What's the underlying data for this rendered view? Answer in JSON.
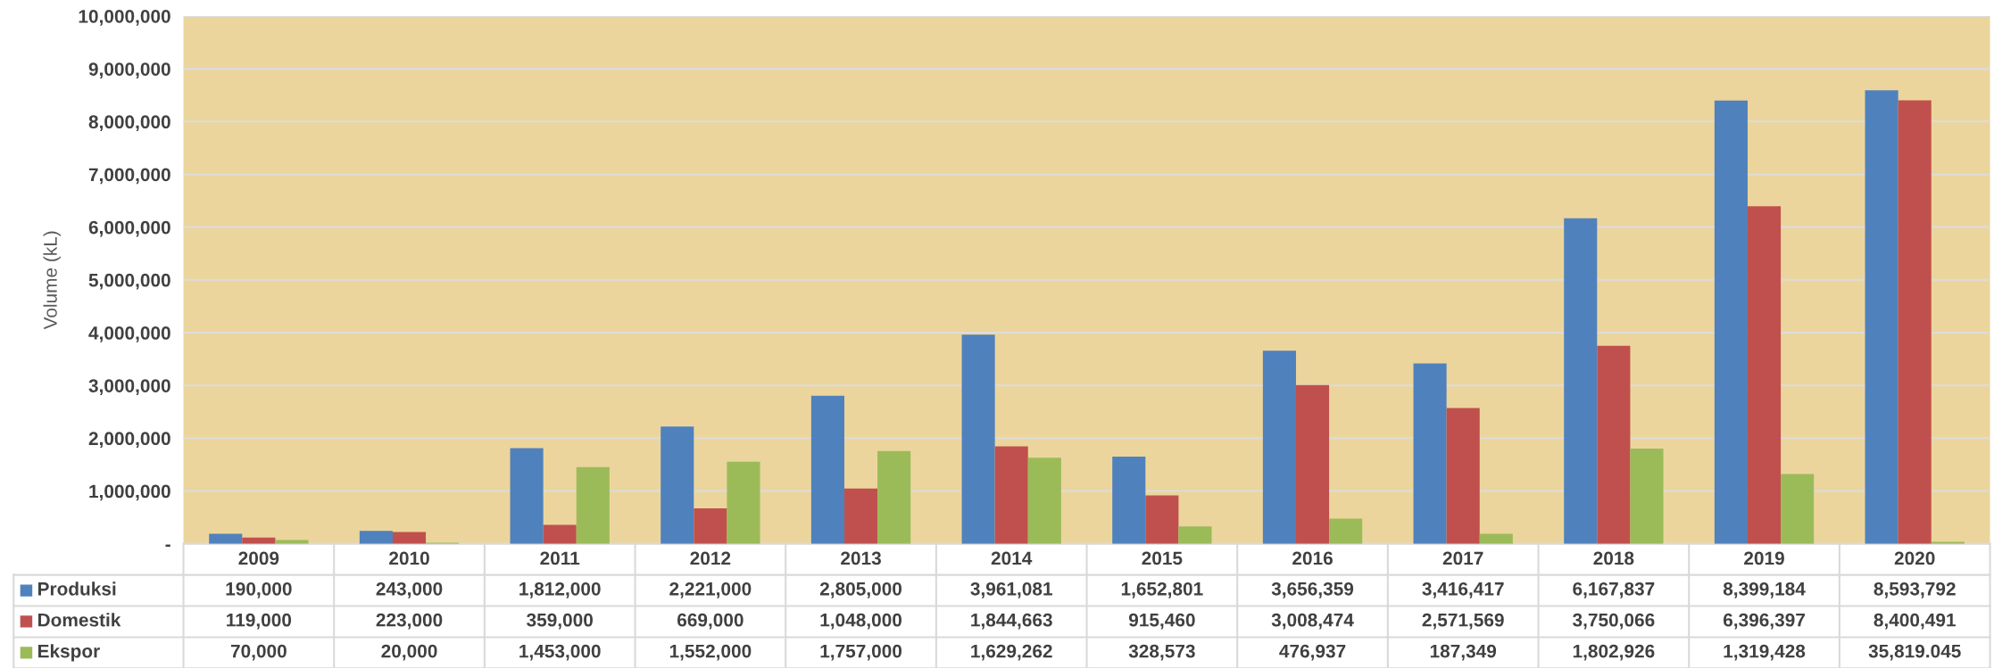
{
  "chart_data": {
    "type": "bar",
    "ylabel": "Volume (kL)",
    "categories": [
      "2009",
      "2010",
      "2011",
      "2012",
      "2013",
      "2014",
      "2015",
      "2016",
      "2017",
      "2018",
      "2019",
      "2020"
    ],
    "series": [
      {
        "name": "Produksi",
        "color": "#4f81bd",
        "values": [
          190000,
          243000,
          1812000,
          2221000,
          2805000,
          3961081,
          1652801,
          3656359,
          3416417,
          6167837,
          8399184,
          8593792
        ],
        "value_labels": [
          "190,000",
          "243,000",
          "1,812,000",
          "2,221,000",
          "2,805,000",
          "3,961,081",
          "1,652,801",
          "3,656,359",
          "3,416,417",
          "6,167,837",
          "8,399,184",
          "8,593,792"
        ]
      },
      {
        "name": "Domestik",
        "color": "#c0504d",
        "values": [
          119000,
          223000,
          359000,
          669000,
          1048000,
          1844663,
          915460,
          3008474,
          2571569,
          3750066,
          6396397,
          8400491
        ],
        "value_labels": [
          "119,000",
          "223,000",
          "359,000",
          "669,000",
          "1,048,000",
          "1,844,663",
          "915,460",
          "3,008,474",
          "2,571,569",
          "3,750,066",
          "6,396,397",
          "8,400,491"
        ]
      },
      {
        "name": "Ekspor",
        "color": "#9bbb59",
        "values": [
          70000,
          20000,
          1453000,
          1552000,
          1757000,
          1629262,
          328573,
          476937,
          187349,
          1802926,
          1319428,
          35819.045
        ],
        "value_labels": [
          "70,000",
          "20,000",
          "1,453,000",
          "1,552,000",
          "1,757,000",
          "1,629,262",
          "328,573",
          "476,937",
          "187,349",
          "1,802,926",
          "1,319,428",
          "35,819.045"
        ]
      }
    ],
    "ylim": [
      0,
      10000000
    ],
    "yticks": [
      {
        "value": 0,
        "label": "-"
      },
      {
        "value": 1000000,
        "label": "1,000,000"
      },
      {
        "value": 2000000,
        "label": "2,000,000"
      },
      {
        "value": 3000000,
        "label": "3,000,000"
      },
      {
        "value": 4000000,
        "label": "4,000,000"
      },
      {
        "value": 5000000,
        "label": "5,000,000"
      },
      {
        "value": 6000000,
        "label": "6,000,000"
      },
      {
        "value": 7000000,
        "label": "7,000,000"
      },
      {
        "value": 8000000,
        "label": "8,000,000"
      },
      {
        "value": 9000000,
        "label": "9,000,000"
      },
      {
        "value": 10000000,
        "label": "10,000,000"
      }
    ],
    "grid": "y",
    "legend": "bottom left"
  }
}
